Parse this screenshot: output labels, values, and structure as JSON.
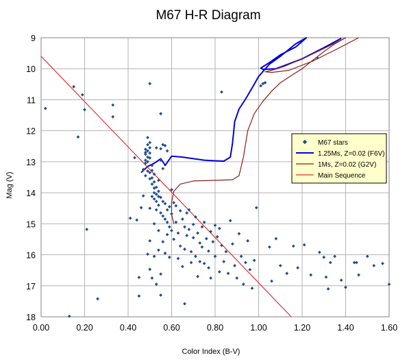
{
  "chart_data": {
    "type": "scatter",
    "title": "M67 H-R Diagram",
    "xlabel": "Color Index (B-V)",
    "ylabel": "Mag (V)",
    "xlim": [
      0.0,
      1.6
    ],
    "ylim": [
      9,
      18
    ],
    "y_inverted": true,
    "x_ticks": [
      "0.00",
      "0.20",
      "0.40",
      "0.60",
      "0.80",
      "1.00",
      "1.20",
      "1.40",
      "1.60"
    ],
    "y_ticks": [
      "9",
      "10",
      "11",
      "12",
      "13",
      "14",
      "15",
      "16",
      "17",
      "18"
    ],
    "grid": true,
    "legend_position": "right",
    "series": [
      {
        "name": "M67 stars",
        "kind": "points",
        "color": "#1f4e8c",
        "points": [
          [
            0.02,
            11.28
          ],
          [
            0.13,
            17.98
          ],
          [
            0.15,
            10.58
          ],
          [
            0.17,
            12.2
          ],
          [
            0.19,
            10.84
          ],
          [
            0.2,
            11.32
          ],
          [
            0.21,
            15.18
          ],
          [
            0.26,
            17.42
          ],
          [
            0.33,
            11.17
          ],
          [
            0.33,
            11.55
          ],
          [
            0.41,
            14.82
          ],
          [
            0.43,
            12.87
          ],
          [
            0.44,
            14.88
          ],
          [
            0.45,
            16.73
          ],
          [
            0.45,
            17.33
          ],
          [
            0.46,
            14.48
          ],
          [
            0.47,
            13.25
          ],
          [
            0.47,
            14.1
          ],
          [
            0.48,
            12.6
          ],
          [
            0.48,
            12.7
          ],
          [
            0.48,
            12.76
          ],
          [
            0.48,
            12.95
          ],
          [
            0.48,
            13.05
          ],
          [
            0.48,
            13.45
          ],
          [
            0.49,
            12.22
          ],
          [
            0.49,
            12.45
          ],
          [
            0.49,
            12.65
          ],
          [
            0.49,
            12.85
          ],
          [
            0.49,
            13.0
          ],
          [
            0.49,
            13.3
          ],
          [
            0.49,
            15.98
          ],
          [
            0.5,
            10.48
          ],
          [
            0.5,
            12.38
          ],
          [
            0.5,
            12.55
          ],
          [
            0.5,
            12.72
          ],
          [
            0.5,
            12.88
          ],
          [
            0.5,
            13.35
          ],
          [
            0.5,
            13.55
          ],
          [
            0.5,
            14.5
          ],
          [
            0.5,
            15.55
          ],
          [
            0.5,
            16.47
          ],
          [
            0.51,
            13.12
          ],
          [
            0.51,
            13.28
          ],
          [
            0.51,
            13.52
          ],
          [
            0.51,
            13.72
          ],
          [
            0.51,
            14.12
          ],
          [
            0.51,
            16.75
          ],
          [
            0.52,
            13.4
          ],
          [
            0.52,
            13.65
          ],
          [
            0.52,
            13.85
          ],
          [
            0.52,
            14.0
          ],
          [
            0.52,
            14.2
          ],
          [
            0.52,
            15.0
          ],
          [
            0.52,
            16.05
          ],
          [
            0.53,
            12.55
          ],
          [
            0.53,
            13.82
          ],
          [
            0.53,
            14.05
          ],
          [
            0.53,
            14.28
          ],
          [
            0.53,
            14.55
          ],
          [
            0.53,
            16.95
          ],
          [
            0.54,
            13.6
          ],
          [
            0.54,
            13.95
          ],
          [
            0.54,
            14.12
          ],
          [
            0.54,
            14.4
          ],
          [
            0.54,
            15.22
          ],
          [
            0.54,
            15.85
          ],
          [
            0.55,
            11.45
          ],
          [
            0.55,
            12.58
          ],
          [
            0.55,
            12.95
          ],
          [
            0.55,
            14.15
          ],
          [
            0.55,
            14.65
          ],
          [
            0.55,
            16.62
          ],
          [
            0.55,
            17.3
          ],
          [
            0.56,
            12.45
          ],
          [
            0.56,
            13.22
          ],
          [
            0.56,
            14.28
          ],
          [
            0.56,
            14.75
          ],
          [
            0.56,
            15.58
          ],
          [
            0.57,
            12.48
          ],
          [
            0.57,
            14.35
          ],
          [
            0.57,
            14.85
          ],
          [
            0.57,
            15.95
          ],
          [
            0.58,
            12.65
          ],
          [
            0.58,
            14.55
          ],
          [
            0.58,
            14.95
          ],
          [
            0.58,
            15.35
          ],
          [
            0.59,
            14.45
          ],
          [
            0.59,
            15.1
          ],
          [
            0.59,
            16.08
          ],
          [
            0.6,
            13.9
          ],
          [
            0.6,
            14.68
          ],
          [
            0.6,
            15.22
          ],
          [
            0.61,
            14.32
          ],
          [
            0.61,
            15.5
          ],
          [
            0.62,
            14.42
          ],
          [
            0.62,
            14.95
          ],
          [
            0.63,
            15.3
          ],
          [
            0.63,
            16.12
          ],
          [
            0.64,
            14.58
          ],
          [
            0.64,
            15.72
          ],
          [
            0.65,
            14.85
          ],
          [
            0.65,
            16.38
          ],
          [
            0.66,
            15.1
          ],
          [
            0.66,
            15.82
          ],
          [
            0.66,
            17.58
          ],
          [
            0.67,
            14.65
          ],
          [
            0.67,
            15.38
          ],
          [
            0.68,
            14.55
          ],
          [
            0.68,
            15.18
          ],
          [
            0.69,
            15.9
          ],
          [
            0.69,
            16.25
          ],
          [
            0.7,
            15.02
          ],
          [
            0.7,
            15.45
          ],
          [
            0.71,
            14.78
          ],
          [
            0.71,
            16.05
          ],
          [
            0.72,
            15.3
          ],
          [
            0.72,
            16.7
          ],
          [
            0.73,
            15.62
          ],
          [
            0.73,
            16.22
          ],
          [
            0.74,
            15.1
          ],
          [
            0.74,
            15.75
          ],
          [
            0.75,
            14.95
          ],
          [
            0.75,
            16.28
          ],
          [
            0.76,
            15.48
          ],
          [
            0.77,
            15.88
          ],
          [
            0.77,
            16.42
          ],
          [
            0.78,
            15.25
          ],
          [
            0.78,
            16.75
          ],
          [
            0.79,
            15.58
          ],
          [
            0.8,
            15.05
          ],
          [
            0.8,
            16.05
          ],
          [
            0.81,
            15.42
          ],
          [
            0.82,
            15.15
          ],
          [
            0.82,
            16.55
          ],
          [
            0.83,
            10.75
          ],
          [
            0.83,
            15.7
          ],
          [
            0.84,
            16.22
          ],
          [
            0.85,
            15.9
          ],
          [
            0.86,
            16.6
          ],
          [
            0.87,
            14.9
          ],
          [
            0.88,
            15.65
          ],
          [
            0.89,
            16.35
          ],
          [
            0.9,
            16.75
          ],
          [
            0.91,
            15.32
          ],
          [
            0.92,
            16.05
          ],
          [
            0.93,
            16.95
          ],
          [
            0.94,
            16.25
          ],
          [
            0.95,
            15.55
          ],
          [
            0.96,
            16.48
          ],
          [
            0.97,
            17.08
          ],
          [
            0.98,
            16.18
          ],
          [
            0.99,
            14.48
          ],
          [
            1.01,
            10.55
          ],
          [
            1.02,
            10.48
          ],
          [
            1.03,
            10.45
          ],
          [
            1.05,
            15.75
          ],
          [
            1.06,
            16.85
          ],
          [
            1.08,
            15.48
          ],
          [
            1.1,
            16.35
          ],
          [
            1.13,
            16.6
          ],
          [
            1.16,
            15.72
          ],
          [
            1.18,
            16.42
          ],
          [
            1.21,
            15.68
          ],
          [
            1.24,
            16.65
          ],
          [
            1.27,
            9.65
          ],
          [
            1.28,
            15.92
          ],
          [
            1.3,
            16.08
          ],
          [
            1.31,
            16.72
          ],
          [
            1.32,
            17.1
          ],
          [
            1.33,
            16.25
          ],
          [
            1.35,
            16.05
          ],
          [
            1.38,
            16.82
          ],
          [
            1.4,
            17.05
          ],
          [
            1.44,
            16.25
          ],
          [
            1.45,
            16.25
          ],
          [
            1.46,
            16.65
          ],
          [
            1.5,
            16.05
          ],
          [
            1.53,
            16.35
          ],
          [
            1.57,
            16.28
          ],
          [
            1.6,
            16.95
          ]
        ]
      },
      {
        "name": "1.25Ms, Z=0.02 (F6V)",
        "kind": "line",
        "color": "#0000dd",
        "points": [
          [
            0.46,
            13.35
          ],
          [
            0.49,
            13.15
          ],
          [
            0.52,
            13.05
          ],
          [
            0.55,
            12.9
          ],
          [
            0.56,
            13.0
          ],
          [
            0.57,
            13.12
          ],
          [
            0.6,
            12.82
          ],
          [
            0.65,
            12.85
          ],
          [
            0.7,
            12.9
          ],
          [
            0.75,
            12.95
          ],
          [
            0.8,
            12.97
          ],
          [
            0.84,
            12.98
          ],
          [
            0.87,
            12.85
          ],
          [
            0.88,
            12.4
          ],
          [
            0.89,
            11.7
          ],
          [
            0.91,
            11.3
          ],
          [
            0.94,
            10.98
          ],
          [
            0.97,
            10.62
          ],
          [
            1.0,
            10.25
          ],
          [
            1.05,
            9.85
          ],
          [
            1.1,
            9.6
          ],
          [
            1.17,
            9.2
          ],
          [
            1.22,
            9.0
          ],
          [
            1.17,
            9.3
          ],
          [
            1.1,
            9.55
          ],
          [
            1.05,
            9.8
          ],
          [
            1.01,
            9.98
          ],
          [
            1.02,
            10.02
          ],
          [
            1.08,
            10.0
          ],
          [
            1.2,
            9.68
          ],
          [
            1.3,
            9.32
          ],
          [
            1.38,
            9.02
          ]
        ]
      },
      {
        "name": "1Ms, Z=0.02 (G2V)",
        "kind": "line",
        "color": "#8b1a1a",
        "points": [
          [
            0.61,
            15.0
          ],
          [
            0.6,
            14.7
          ],
          [
            0.6,
            14.3
          ],
          [
            0.61,
            13.95
          ],
          [
            0.64,
            13.72
          ],
          [
            0.7,
            13.62
          ],
          [
            0.8,
            13.6
          ],
          [
            0.88,
            13.58
          ],
          [
            0.91,
            13.45
          ],
          [
            0.93,
            12.85
          ],
          [
            0.95,
            12.0
          ],
          [
            0.98,
            11.45
          ],
          [
            1.02,
            11.05
          ],
          [
            1.06,
            10.72
          ],
          [
            1.1,
            10.45
          ],
          [
            1.15,
            10.22
          ],
          [
            1.2,
            10.0
          ],
          [
            1.25,
            9.72
          ],
          [
            1.3,
            9.45
          ],
          [
            1.35,
            9.2
          ],
          [
            1.4,
            9.0
          ],
          [
            1.32,
            9.28
          ],
          [
            1.22,
            9.62
          ],
          [
            1.12,
            9.92
          ],
          [
            1.06,
            10.05
          ],
          [
            1.03,
            10.1
          ],
          [
            1.06,
            10.12
          ],
          [
            1.14,
            10.05
          ],
          [
            1.25,
            9.75
          ],
          [
            1.35,
            9.4
          ],
          [
            1.46,
            9.0
          ]
        ]
      },
      {
        "name": "Main Sequence",
        "kind": "line",
        "color": "#e03030",
        "points": [
          [
            0.0,
            9.6
          ],
          [
            1.15,
            18.0
          ]
        ]
      }
    ]
  }
}
